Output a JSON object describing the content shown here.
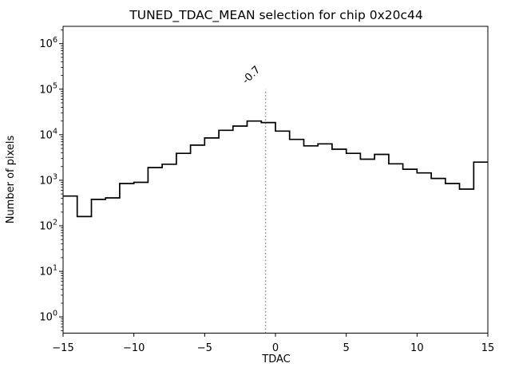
{
  "colors": {
    "background": "#ffffff",
    "hist_line": "#000000",
    "spine": "#000000",
    "tick": "#000000",
    "vline": "#8c8c8c",
    "annotation": "#999999"
  },
  "chart_data": {
    "type": "bar",
    "style": "step-histogram",
    "title": "TUNED_TDAC_MEAN selection for chip 0x20c44",
    "xlabel": "TDAC",
    "ylabel": "Number of pixels",
    "yscale": "log",
    "grid": false,
    "legend": "none",
    "xlim": [
      -15,
      15
    ],
    "ylim": [
      0.44,
      2400000
    ],
    "x_tick_values": [
      -15,
      -10,
      -5,
      0,
      5,
      10,
      15
    ],
    "x_tick_labels": [
      "−15",
      "−10",
      "−5",
      "0",
      "5",
      "10",
      "15"
    ],
    "y_tick_base": "10",
    "y_tick_exponents": [
      0,
      1,
      2,
      3,
      4,
      5,
      6
    ],
    "bin_edges": [
      -15,
      -14,
      -13,
      -12,
      -11,
      -10,
      -9,
      -8,
      -7,
      -6,
      -5,
      -4,
      -3,
      -2,
      -1,
      0,
      1,
      2,
      3,
      4,
      5,
      6,
      7,
      8,
      9,
      10,
      11,
      12,
      13,
      14,
      15
    ],
    "counts": [
      450,
      160,
      380,
      410,
      850,
      900,
      1900,
      2250,
      3900,
      5900,
      8500,
      12500,
      15500,
      20000,
      18500,
      12000,
      7900,
      5700,
      6300,
      4800,
      3900,
      2900,
      3700,
      2300,
      1750,
      1450,
      1100,
      850,
      640,
      2500
    ],
    "vline": {
      "x": -0.7,
      "label": "-0.7",
      "top_value": 100000,
      "line_style": "dotted"
    }
  }
}
